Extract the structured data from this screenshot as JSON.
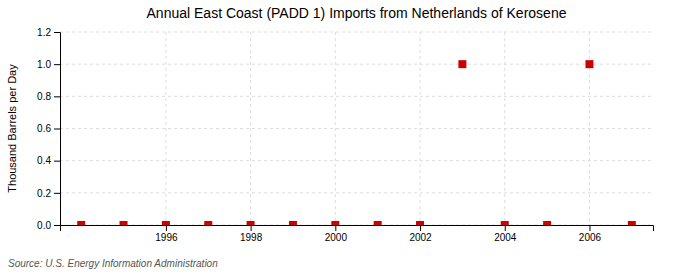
{
  "chart_data": {
    "type": "scatter",
    "title": "Annual East Coast (PADD 1) Imports from Netherlands of Kerosene",
    "ylabel": "Thousand Barrels per Day",
    "annotations": [
      "Source: U.S. Energy Information Administration"
    ],
    "x": [
      1994,
      1995,
      1996,
      1997,
      1998,
      1999,
      2000,
      2001,
      2002,
      2003,
      2004,
      2005,
      2006,
      2007
    ],
    "values": [
      0,
      0,
      0,
      0,
      0,
      0,
      0,
      0,
      0,
      1.0,
      0,
      0,
      1.0,
      0
    ],
    "color": "#CC0000",
    "marker": "square",
    "xlim": [
      1993.5,
      2007.5
    ],
    "ylim": [
      0.0,
      1.2
    ],
    "xticks": [
      1996,
      1998,
      2000,
      2002,
      2004,
      2006
    ],
    "yticks": [
      {
        "value": 0.0,
        "label": "0.0"
      },
      0.2,
      0.4,
      0.6,
      0.8,
      {
        "value": 1.0,
        "label": "1.0"
      },
      1.2
    ],
    "grid": true
  }
}
